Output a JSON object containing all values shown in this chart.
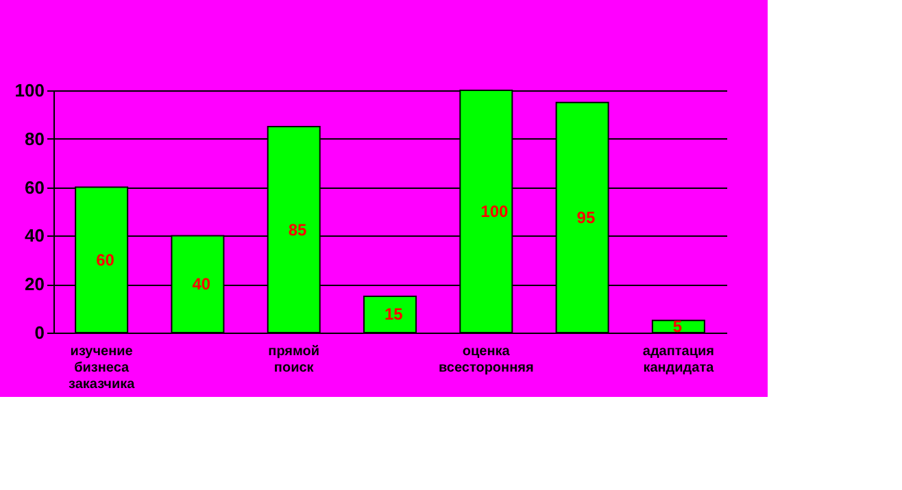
{
  "chart_data": {
    "type": "bar",
    "categories": [
      "изучение бизнеса заказчика",
      null,
      "прямой поиск",
      null,
      "оценка всесторонняя",
      null,
      "адаптация кандидата"
    ],
    "values": [
      60,
      40,
      85,
      15,
      100,
      95,
      5
    ],
    "color": "#00ff00",
    "ylim": [
      0,
      100
    ],
    "yticks": [
      0,
      20,
      40,
      60,
      80,
      100
    ],
    "grid": "y",
    "data_labels": true
  }
}
